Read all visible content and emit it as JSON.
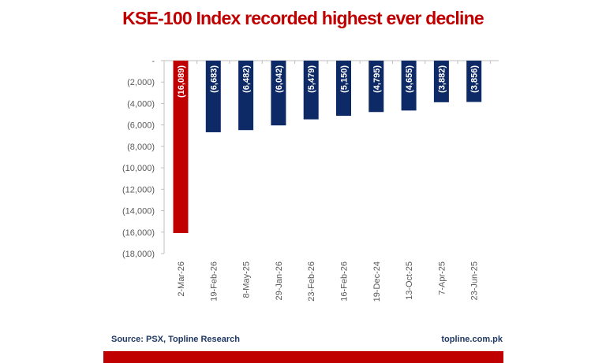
{
  "chart_data": {
    "type": "bar",
    "title": "KSE-100 Index recorded highest ever decline",
    "categories": [
      "2-Mar-26",
      "19-Feb-26",
      "8-May-25",
      "29-Jan-26",
      "23-Feb-26",
      "16-Feb-26",
      "19-Dec-24",
      "13-Oct-25",
      "7-Apr-25",
      "23-Jun-25"
    ],
    "values": [
      -16089,
      -6683,
      -6482,
      -6042,
      -5479,
      -5150,
      -4795,
      -4655,
      -3882,
      -3856
    ],
    "data_labels": [
      "(16,089)",
      "(6,683)",
      "(6,482)",
      "(6,042)",
      "(5,479)",
      "(5,150)",
      "(4,795)",
      "(4,655)",
      "(3,882)",
      "(3,856)"
    ],
    "ylim": [
      -18000,
      0
    ],
    "y_ticks": [
      0,
      -2000,
      -4000,
      -6000,
      -8000,
      -10000,
      -12000,
      -14000,
      -16000,
      -18000
    ],
    "y_tick_labels": [
      "-",
      "(2,000)",
      "(4,000)",
      "(6,000)",
      "(8,000)",
      "(10,000)",
      "(12,000)",
      "(14,000)",
      "(16,000)",
      "(18,000)"
    ],
    "grid": false,
    "legend": "none",
    "colors": {
      "highlight": "#c00000",
      "default": "#0d2a66"
    },
    "highlight_index": 0
  },
  "footer": {
    "source": "Source: PSX, Topline Research",
    "site": "topline.com.pk",
    "bar_color": "#c00000"
  }
}
